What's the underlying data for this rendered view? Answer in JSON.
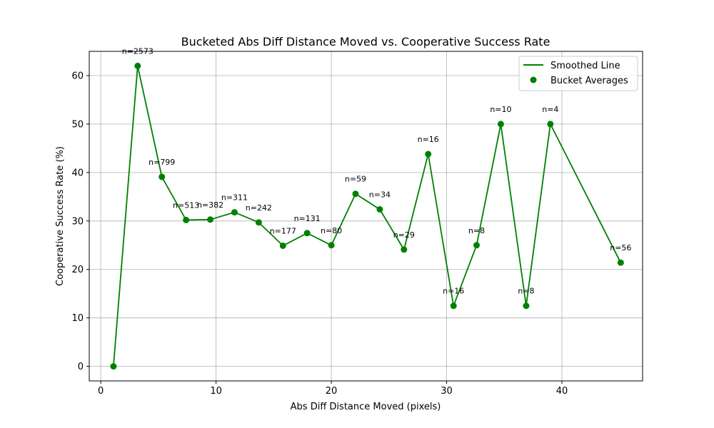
{
  "chart_data": {
    "type": "line",
    "title": "Bucketed Abs Diff Distance Moved vs. Cooperative Success Rate",
    "xlabel": "Abs Diff Distance Moved (pixels)",
    "ylabel": "Cooperative Success Rate (%)",
    "xlim": [
      -1,
      47
    ],
    "ylim": [
      -3,
      65
    ],
    "x_ticks": [
      0,
      10,
      20,
      30,
      40
    ],
    "y_ticks": [
      0,
      10,
      20,
      30,
      40,
      50,
      60
    ],
    "grid": true,
    "legend_position": "top-right",
    "color": "#008000",
    "series": [
      {
        "name": "Smoothed Line",
        "kind": "line",
        "x": [
          1.1,
          3.2,
          5.3,
          7.4,
          9.5,
          11.6,
          13.7,
          15.8,
          17.9,
          20.0,
          22.1,
          24.2,
          26.3,
          28.4,
          30.6,
          32.6,
          34.7,
          36.9,
          39.0,
          45.1
        ],
        "y": [
          0,
          62,
          39.1,
          30.2,
          30.3,
          31.8,
          29.7,
          24.9,
          27.5,
          25.0,
          35.6,
          32.4,
          24.1,
          43.8,
          12.5,
          25.0,
          50.0,
          12.5,
          50.0,
          21.4
        ]
      },
      {
        "name": "Bucket Averages",
        "kind": "scatter",
        "x": [
          1.1,
          3.2,
          5.3,
          7.4,
          9.5,
          11.6,
          13.7,
          15.8,
          17.9,
          20.0,
          22.1,
          24.2,
          26.3,
          28.4,
          30.6,
          32.6,
          34.7,
          36.9,
          39.0,
          45.1
        ],
        "y": [
          0,
          62,
          39.1,
          30.2,
          30.3,
          31.8,
          29.7,
          24.9,
          27.5,
          25.0,
          35.6,
          32.4,
          24.1,
          43.8,
          12.5,
          25.0,
          50.0,
          12.5,
          50.0,
          21.4
        ]
      }
    ],
    "annotations": [
      {
        "x": 3.2,
        "y": 62,
        "text": "n=2573"
      },
      {
        "x": 5.3,
        "y": 39.1,
        "text": "n=799"
      },
      {
        "x": 7.4,
        "y": 30.2,
        "text": "n=513"
      },
      {
        "x": 9.5,
        "y": 30.3,
        "text": "n=382"
      },
      {
        "x": 11.6,
        "y": 31.8,
        "text": "n=311"
      },
      {
        "x": 13.7,
        "y": 29.7,
        "text": "n=242"
      },
      {
        "x": 15.8,
        "y": 24.9,
        "text": "n=177"
      },
      {
        "x": 17.9,
        "y": 27.5,
        "text": "n=131"
      },
      {
        "x": 20.0,
        "y": 25.0,
        "text": "n=80"
      },
      {
        "x": 22.1,
        "y": 35.6,
        "text": "n=59"
      },
      {
        "x": 24.2,
        "y": 32.4,
        "text": "n=34"
      },
      {
        "x": 26.3,
        "y": 24.1,
        "text": "n=29"
      },
      {
        "x": 28.4,
        "y": 43.8,
        "text": "n=16"
      },
      {
        "x": 30.6,
        "y": 12.5,
        "text": "n=16"
      },
      {
        "x": 32.6,
        "y": 25.0,
        "text": "n=8"
      },
      {
        "x": 34.7,
        "y": 50.0,
        "text": "n=10"
      },
      {
        "x": 36.9,
        "y": 12.5,
        "text": "n=8"
      },
      {
        "x": 39.0,
        "y": 50.0,
        "text": "n=4"
      },
      {
        "x": 45.1,
        "y": 21.4,
        "text": "n=56"
      }
    ]
  }
}
